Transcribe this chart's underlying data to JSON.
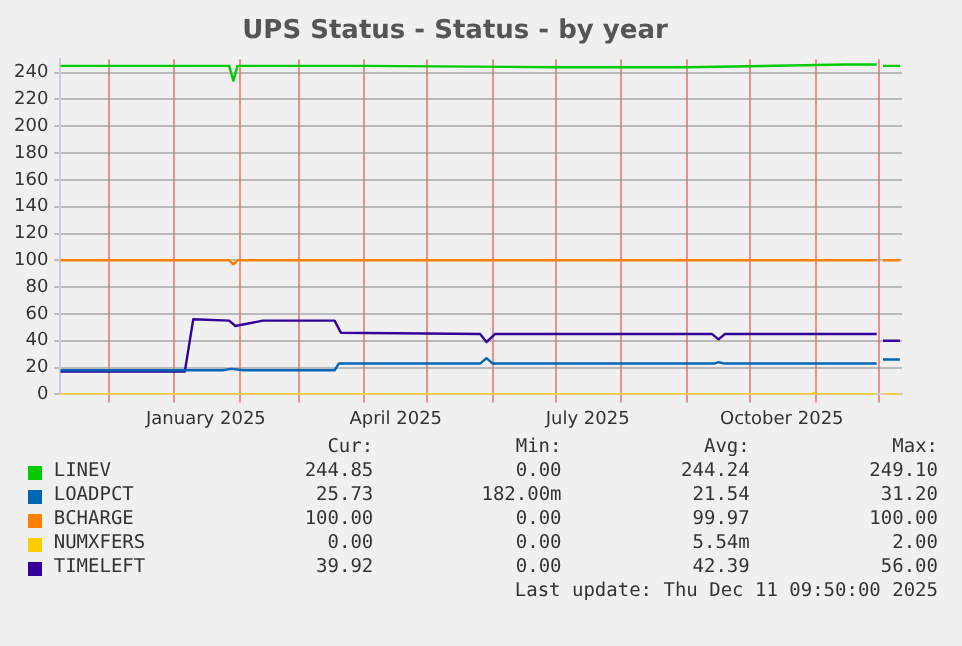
{
  "chart_data": {
    "type": "line",
    "title": "UPS Status - Status - by year",
    "xlim": [
      "2024-11-08",
      "2025-12-12"
    ],
    "xticks": [
      {
        "value": "2024-12-01",
        "label": null
      },
      {
        "value": "2025-01-01",
        "label": null
      },
      {
        "value": "2025-01-16",
        "label": "January 2025"
      },
      {
        "value": "2025-02-01",
        "label": null
      },
      {
        "value": "2025-03-01",
        "label": null
      },
      {
        "value": "2025-04-01",
        "label": null
      },
      {
        "value": "2025-04-16",
        "label": "April 2025"
      },
      {
        "value": "2025-05-01",
        "label": null
      },
      {
        "value": "2025-06-01",
        "label": null
      },
      {
        "value": "2025-07-01",
        "label": null
      },
      {
        "value": "2025-07-16",
        "label": "July 2025"
      },
      {
        "value": "2025-08-01",
        "label": null
      },
      {
        "value": "2025-09-01",
        "label": null
      },
      {
        "value": "2025-10-01",
        "label": null
      },
      {
        "value": "2025-10-16",
        "label": "October 2025"
      },
      {
        "value": "2025-11-01",
        "label": null
      },
      {
        "value": "2025-12-01",
        "label": null
      }
    ],
    "ylim": [
      0,
      250
    ],
    "yticks": [
      0,
      20,
      40,
      60,
      80,
      100,
      120,
      140,
      160,
      180,
      200,
      220,
      240
    ],
    "grid": true,
    "legend": "bottom",
    "marker": "none",
    "series": [
      {
        "name": "LINEV",
        "color": "#00cc00",
        "x": [
          "2024-11-08",
          "2024-12-20",
          "2025-01-27",
          "2025-01-29",
          "2025-01-31",
          "2025-04-01",
          "2025-07-01",
          "2025-09-01",
          "2025-11-15",
          "2025-11-30",
          "2025-12-02",
          "2025-12-03",
          "2025-12-11"
        ],
        "values": [
          245,
          245,
          245,
          234,
          245,
          245,
          244,
          244,
          246,
          246,
          null,
          245,
          245
        ]
      },
      {
        "name": "LOADPCT",
        "color": "#0066b3",
        "x": [
          "2024-11-08",
          "2025-01-24",
          "2025-01-28",
          "2025-02-03",
          "2025-03-18",
          "2025-03-20",
          "2025-05-26",
          "2025-05-29",
          "2025-06-01",
          "2025-09-14",
          "2025-09-16",
          "2025-09-19",
          "2025-11-30",
          "2025-12-02",
          "2025-12-03",
          "2025-12-11"
        ],
        "values": [
          18,
          18,
          19,
          18,
          18,
          23,
          23,
          27,
          23,
          23,
          24,
          23,
          23,
          null,
          26,
          26
        ]
      },
      {
        "name": "BCHARGE",
        "color": "#ff8000",
        "x": [
          "2024-11-08",
          "2025-01-27",
          "2025-01-29",
          "2025-01-31",
          "2025-11-30",
          "2025-12-02",
          "2025-12-03",
          "2025-12-11"
        ],
        "values": [
          100,
          100,
          97,
          100,
          100,
          null,
          100,
          100
        ]
      },
      {
        "name": "NUMXFERS",
        "color": "#ffcc00",
        "x": [
          "2024-11-08",
          "2025-10-30",
          "2025-10-31",
          "2025-11-01",
          "2025-11-30",
          "2025-12-02",
          "2025-12-03",
          "2025-12-11"
        ],
        "values": [
          0,
          0,
          1,
          0,
          0,
          null,
          0,
          0
        ]
      },
      {
        "name": "TIMELEFT",
        "color": "#330099",
        "x": [
          "2024-11-08",
          "2025-01-06",
          "2025-01-10",
          "2025-01-27",
          "2025-01-30",
          "2025-02-12",
          "2025-03-18",
          "2025-03-21",
          "2025-05-26",
          "2025-05-29",
          "2025-06-02",
          "2025-09-13",
          "2025-09-16",
          "2025-09-19",
          "2025-11-30",
          "2025-12-02",
          "2025-12-03",
          "2025-12-11"
        ],
        "values": [
          17,
          17,
          56,
          55,
          51,
          55,
          55,
          46,
          45,
          39,
          45,
          45,
          41,
          45,
          45,
          null,
          40,
          40
        ]
      }
    ],
    "annotations": [
      "Cur:",
      "Min:",
      "Avg:",
      "Max:",
      "244.85",
      "0.00",
      "244.24",
      "249.10",
      "25.73",
      "182.00m",
      "21.54",
      "31.20",
      "100.00",
      "0.00",
      "99.97",
      "100.00",
      "0.00",
      "0.00",
      "5.54m",
      "2.00",
      "39.92",
      "0.00",
      "42.39",
      "56.00",
      "Last update: Thu Dec 11 09:50:00 2025"
    ]
  }
}
